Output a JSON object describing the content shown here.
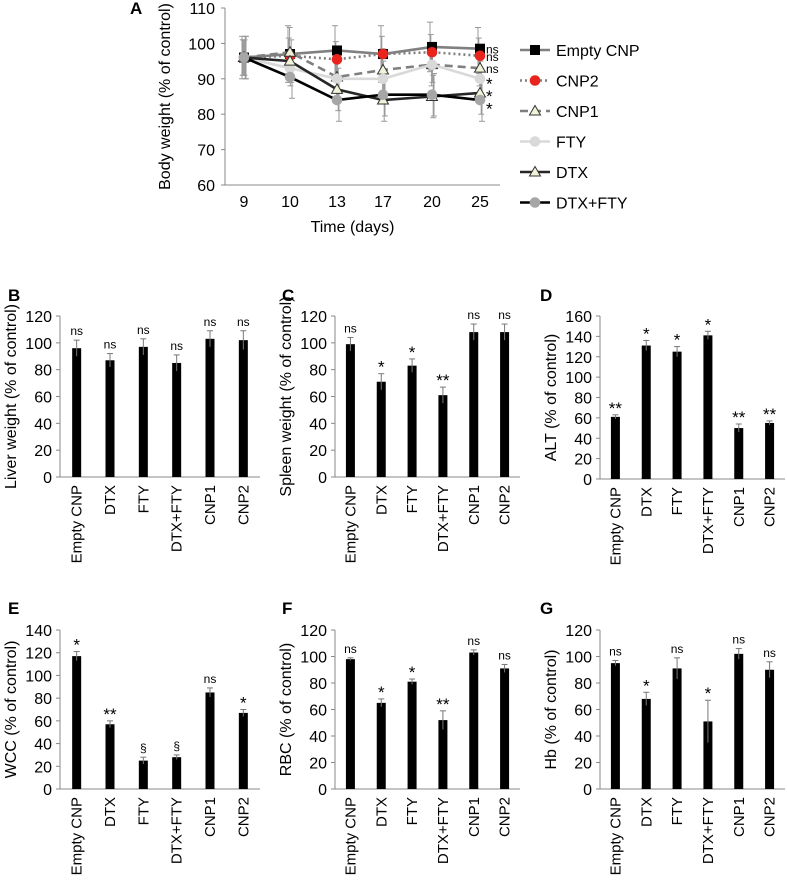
{
  "chart_data": [
    {
      "id": "A",
      "panel_label": "A",
      "type": "line",
      "title": "",
      "xlabel": "Time (days)",
      "ylabel": "Body weight (% of control)",
      "ylim": [
        60,
        110
      ],
      "yticks": [
        60,
        70,
        80,
        90,
        100,
        110
      ],
      "x": [
        "9",
        "10",
        "13",
        "17",
        "20",
        "25"
      ],
      "grid": false,
      "legend_position": "right",
      "series": [
        {
          "name": "Empty CNP",
          "color": "#808080",
          "dash": "solid",
          "marker": "square",
          "marker_color": "#000000",
          "values": [
            96,
            97,
            98,
            97,
            99,
            98.5
          ],
          "errors": [
            6,
            8,
            7,
            8,
            7,
            6
          ],
          "significance": "ns"
        },
        {
          "name": "CNP2",
          "color": "#7f7f7f",
          "dash": "dot",
          "marker": "circle",
          "marker_color": "#e8241d",
          "values": [
            96,
            96.5,
            95.5,
            97,
            97.5,
            96.5
          ],
          "errors": [
            5,
            5,
            5,
            5,
            5,
            5
          ],
          "significance": "ns"
        },
        {
          "name": "CNP1",
          "color": "#7f7f7f",
          "dash": "dash",
          "marker": "triangle",
          "marker_color": "#f2f2d8",
          "values": [
            96,
            97.5,
            90.5,
            92.5,
            94,
            93
          ],
          "errors": [
            5,
            7,
            6,
            6,
            6,
            5
          ],
          "significance": "ns"
        },
        {
          "name": "FTY",
          "color": "#d9d9d9",
          "dash": "solid",
          "marker": "circle",
          "marker_color": "#d9d9d9",
          "values": [
            96,
            93,
            90,
            90,
            94,
            90
          ],
          "errors": [
            5,
            5,
            5,
            5,
            5,
            5
          ],
          "significance": "*"
        },
        {
          "name": "DTX",
          "color": "#262626",
          "dash": "solid",
          "marker": "triangle",
          "marker_color": "#f2f2d8",
          "values": [
            96,
            95,
            87,
            84,
            85,
            86
          ],
          "errors": [
            6,
            6,
            6,
            6,
            6,
            6
          ],
          "significance": "*"
        },
        {
          "name": "DTX+FTY",
          "color": "#000000",
          "dash": "solid",
          "marker": "circle",
          "marker_color": "#a6a6a6",
          "values": [
            96,
            90.5,
            84,
            85.5,
            85.5,
            84
          ],
          "errors": [
            6,
            6,
            6,
            6,
            6,
            6
          ],
          "significance": "*"
        }
      ]
    },
    {
      "id": "B",
      "panel_label": "B",
      "type": "bar",
      "ylabel": "Liver weight (% of control)",
      "xlabel": "",
      "ylim": [
        0,
        120
      ],
      "yticks": [
        0,
        20,
        40,
        60,
        80,
        100,
        120
      ],
      "categories": [
        "Empty CNP",
        "DTX",
        "FTY",
        "DTX+FTY",
        "CNP1",
        "CNP2"
      ],
      "values": [
        96,
        87,
        97,
        85,
        103,
        102
      ],
      "errors": [
        6,
        5,
        6,
        6,
        6,
        7
      ],
      "annotations": [
        "ns",
        "ns",
        "ns",
        "ns",
        "ns",
        "ns"
      ]
    },
    {
      "id": "C",
      "panel_label": "C",
      "type": "bar",
      "ylabel": "Spleen weight (% of control)",
      "xlabel": "",
      "ylim": [
        0,
        120
      ],
      "yticks": [
        0,
        20,
        40,
        60,
        80,
        100,
        120
      ],
      "categories": [
        "Empty CNP",
        "DTX",
        "FTY",
        "DTX+FTY",
        "CNP1",
        "CNP2"
      ],
      "values": [
        99,
        71,
        83,
        61,
        108,
        108
      ],
      "errors": [
        5,
        6,
        5,
        6,
        6,
        6
      ],
      "annotations": [
        "ns",
        "*",
        "*",
        "**",
        "ns",
        "ns"
      ]
    },
    {
      "id": "D",
      "panel_label": "D",
      "type": "bar",
      "ylabel": "ALT (% of control)",
      "xlabel": "",
      "ylim": [
        0,
        160
      ],
      "yticks": [
        0,
        20,
        40,
        60,
        80,
        100,
        120,
        140,
        160
      ],
      "categories": [
        "Empty CNP",
        "DTX",
        "FTY",
        "DTX+FTY",
        "CNP1",
        "CNP2"
      ],
      "values": [
        61,
        131,
        125,
        141,
        50,
        55
      ],
      "errors": [
        2,
        5,
        5,
        4,
        4,
        2
      ],
      "annotations": [
        "**",
        "*",
        "*",
        "*",
        "**",
        "**"
      ]
    },
    {
      "id": "E",
      "panel_label": "E",
      "type": "bar",
      "ylabel": "WCC (% of control)",
      "xlabel": "",
      "ylim": [
        0,
        140
      ],
      "yticks": [
        0,
        20,
        40,
        60,
        80,
        100,
        120,
        140
      ],
      "categories": [
        "Empty CNP",
        "DTX",
        "FTY",
        "DTX+FTY",
        "CNP1",
        "CNP2"
      ],
      "values": [
        117,
        57,
        25,
        28,
        85,
        67
      ],
      "errors": [
        4,
        3,
        3,
        2,
        4,
        3
      ],
      "annotations": [
        "*",
        "**",
        "§",
        "§",
        "ns",
        "*"
      ]
    },
    {
      "id": "F",
      "panel_label": "F",
      "type": "bar",
      "ylabel": "RBC (% of control)",
      "xlabel": "",
      "ylim": [
        0,
        120
      ],
      "yticks": [
        0,
        20,
        40,
        60,
        80,
        100,
        120
      ],
      "categories": [
        "Empty CNP",
        "DTX",
        "FTY",
        "DTX+FTY",
        "CNP1",
        "CNP2"
      ],
      "values": [
        98,
        65,
        81,
        52,
        103,
        91
      ],
      "errors": [
        1,
        3,
        2,
        7,
        2,
        3
      ],
      "annotations": [
        "ns",
        "*",
        "*",
        "**",
        "ns",
        "ns"
      ]
    },
    {
      "id": "G",
      "panel_label": "G",
      "type": "bar",
      "ylabel": "Hb (% of control)",
      "xlabel": "",
      "ylim": [
        0,
        120
      ],
      "yticks": [
        0,
        20,
        40,
        60,
        80,
        100,
        120
      ],
      "categories": [
        "Empty CNP",
        "DTX",
        "FTY",
        "DTX+FTY",
        "CNP1",
        "CNP2"
      ],
      "values": [
        95,
        68,
        91,
        51,
        102,
        90
      ],
      "errors": [
        2,
        5,
        8,
        16,
        4,
        6
      ],
      "annotations": [
        "ns",
        "*",
        "ns",
        "*",
        "ns",
        "ns"
      ]
    }
  ]
}
